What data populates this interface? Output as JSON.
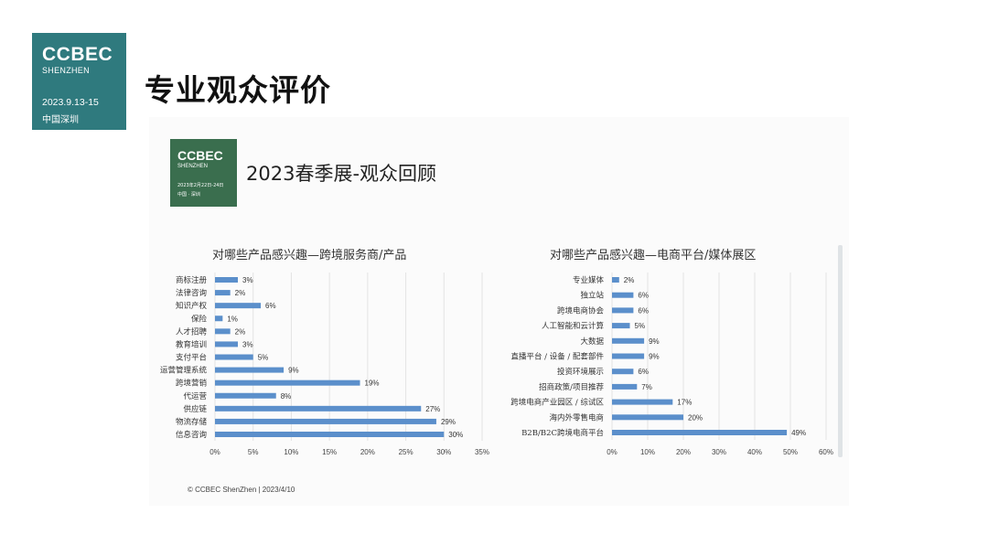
{
  "header": {
    "logo": {
      "name": "CCBEC",
      "city": "SHENZHEN",
      "dates": "2023.9.13-15",
      "location": "中国深圳"
    },
    "title": "专业观众评价"
  },
  "slide": {
    "logo": {
      "name": "CCBEC",
      "city": "SHENZHEN",
      "dates": "2023年2月22日-24日",
      "location": "中国 · 深圳"
    },
    "title": "2023春季展-观众回顾",
    "footer": "© CCBEC ShenZhen | 2023/4/10"
  },
  "colors": {
    "bar": "#5b8fcb",
    "grid": "#e3e3e3",
    "logo_main": "#2f7a7e",
    "logo_slide": "#3a6e4e"
  },
  "chart_data": [
    {
      "type": "bar",
      "orientation": "horizontal",
      "title": "对哪些产品感兴趣—跨境服务商/产品",
      "categories": [
        "商标注册",
        "法律咨询",
        "知识产权",
        "保险",
        "人才招聘",
        "教育培训",
        "支付平台",
        "运营管理系统",
        "跨境营销",
        "代运营",
        "供应链",
        "物流存储",
        "信息咨询"
      ],
      "values": [
        3,
        2,
        6,
        1,
        2,
        3,
        5,
        9,
        19,
        8,
        27,
        29,
        30
      ],
      "data_labels": [
        "3%",
        "2%",
        "6%",
        "1%",
        "2%",
        "3%",
        "5%",
        "9%",
        "19%",
        "8%",
        "27%",
        "29%",
        "30%"
      ],
      "xlim": [
        0,
        35
      ],
      "ticks": [
        "0%",
        "5%",
        "10%",
        "15%",
        "20%",
        "25%",
        "30%",
        "35%"
      ],
      "grid": true
    },
    {
      "type": "bar",
      "orientation": "horizontal",
      "title": "对哪些产品感兴趣—电商平台/媒体展区",
      "categories": [
        "专业媒体",
        "独立站",
        "跨境电商协会",
        "人工智能和云计算",
        "大数据",
        "直播平台 / 设备 / 配套部件",
        "投资环境展示",
        "招商政策/项目推荐",
        "跨境电商产业园区 / 综试区",
        "海内外零售电商",
        "B2B/B2C跨境电商平台"
      ],
      "values": [
        2,
        6,
        6,
        5,
        9,
        9,
        6,
        7,
        17,
        20,
        49
      ],
      "data_labels": [
        "2%",
        "6%",
        "6%",
        "5%",
        "9%",
        "9%",
        "6%",
        "7%",
        "17%",
        "20%",
        "49%"
      ],
      "xlim": [
        0,
        60
      ],
      "ticks": [
        "0%",
        "10%",
        "20%",
        "30%",
        "40%",
        "50%",
        "60%"
      ],
      "grid": true
    }
  ]
}
